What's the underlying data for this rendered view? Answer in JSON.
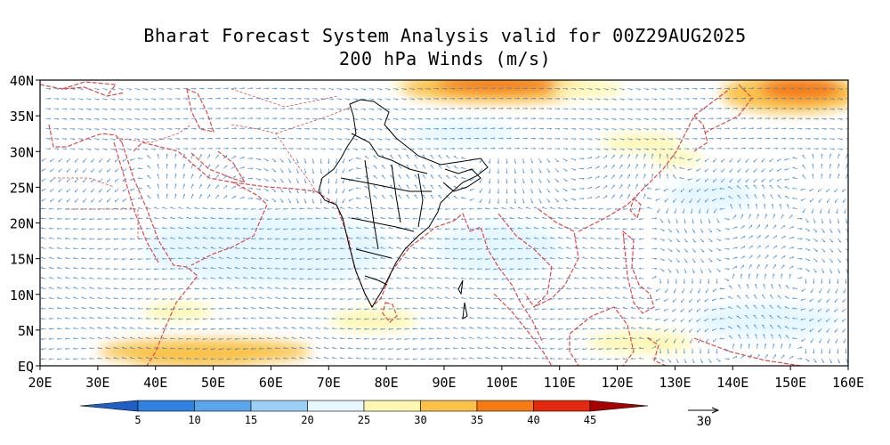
{
  "header": {
    "title_line1": "Bharat Forecast System Analysis valid for 00Z29AUG2025",
    "title_line2": "200 hPa Winds (m/s)"
  },
  "map": {
    "projection": "lat-lon",
    "lon_range": [
      20,
      160
    ],
    "lat_range": [
      0,
      40
    ],
    "lat_ticks": [
      {
        "value": 0,
        "label": "EQ"
      },
      {
        "value": 5,
        "label": "5N"
      },
      {
        "value": 10,
        "label": "10N"
      },
      {
        "value": 15,
        "label": "15N"
      },
      {
        "value": 20,
        "label": "20N"
      },
      {
        "value": 25,
        "label": "25N"
      },
      {
        "value": 30,
        "label": "30N"
      },
      {
        "value": 35,
        "label": "35N"
      },
      {
        "value": 40,
        "label": "40N"
      }
    ],
    "lon_ticks": [
      {
        "value": 20,
        "label": "20E"
      },
      {
        "value": 30,
        "label": "30E"
      },
      {
        "value": 40,
        "label": "40E"
      },
      {
        "value": 50,
        "label": "50E"
      },
      {
        "value": 60,
        "label": "60E"
      },
      {
        "value": 70,
        "label": "70E"
      },
      {
        "value": 80,
        "label": "80E"
      },
      {
        "value": 90,
        "label": "90E"
      },
      {
        "value": 100,
        "label": "100E"
      },
      {
        "value": 110,
        "label": "110E"
      },
      {
        "value": 120,
        "label": "120E"
      },
      {
        "value": 130,
        "label": "130E"
      },
      {
        "value": 140,
        "label": "140E"
      },
      {
        "value": 150,
        "label": "150E"
      },
      {
        "value": 160,
        "label": "160E"
      }
    ],
    "colors": {
      "coast": "#e04848",
      "india_border": "#000000",
      "vector": "#3c8ad0"
    }
  },
  "colorbar": {
    "labels": [
      "5",
      "10",
      "15",
      "20",
      "25",
      "30",
      "35",
      "40",
      "45"
    ],
    "colors": [
      "#1e5fc8",
      "#2f82e0",
      "#5aa6ec",
      "#9ccff5",
      "#e6f7ff",
      "#fff7b0",
      "#fbc24a",
      "#f67a14",
      "#e5290e",
      "#a80000"
    ]
  },
  "reference_vector": {
    "label": "30"
  }
}
